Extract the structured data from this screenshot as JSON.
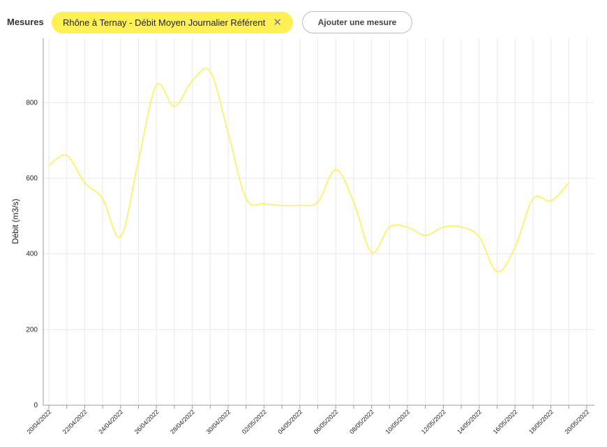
{
  "ui": {
    "measures_label": "Mesures",
    "measure_chip": "Rhône à Ternay - Débit Moyen Journalier Référent",
    "add_button": "Ajouter une mesure"
  },
  "chart_data": {
    "type": "line",
    "y_label": "Débit (m3/s)",
    "categories": [
      "20/04/2022",
      null,
      "22/04/2022",
      null,
      "24/04/2022",
      null,
      "26/04/2022",
      null,
      "28/04/2022",
      null,
      "30/04/2022",
      null,
      "02/05/2022",
      null,
      "04/05/2022",
      null,
      "06/05/2022",
      null,
      "08/05/2022",
      null,
      "10/05/2022",
      null,
      "12/05/2022",
      null,
      "14/05/2022",
      null,
      "16/05/2022",
      null,
      "18/05/2022",
      null,
      "20/05/2022"
    ],
    "series": [
      {
        "name": "Rhône à Ternay - Débit Moyen Journalier Référent",
        "color": "#fff055",
        "values": [
          634,
          660,
          588,
          546,
          445,
          647,
          846,
          790,
          858,
          882,
          720,
          546,
          533,
          528,
          528,
          537,
          623,
          537,
          404,
          471,
          471,
          449,
          471,
          471,
          445,
          353,
          417,
          546,
          540,
          588,
          null
        ]
      }
    ],
    "ylim": [
      0,
      970
    ],
    "yticks": [
      0,
      200,
      400,
      600,
      800
    ],
    "grid": true
  }
}
